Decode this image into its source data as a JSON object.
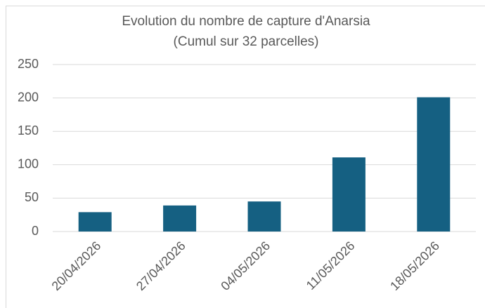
{
  "chart_data": {
    "type": "bar",
    "title": "Evolution du nombre de capture d'Anarsia",
    "subtitle": "(Cumul sur 32 parcelles)",
    "categories": [
      "20/04/2026",
      "27/04/2026",
      "04/05/2026",
      "11/05/2026",
      "18/05/2026"
    ],
    "values": [
      29,
      39,
      45,
      111,
      201
    ],
    "color": "#156082",
    "ylim": [
      0,
      250
    ],
    "yticks": [
      0,
      50,
      100,
      150,
      200,
      250
    ],
    "grid": true
  }
}
